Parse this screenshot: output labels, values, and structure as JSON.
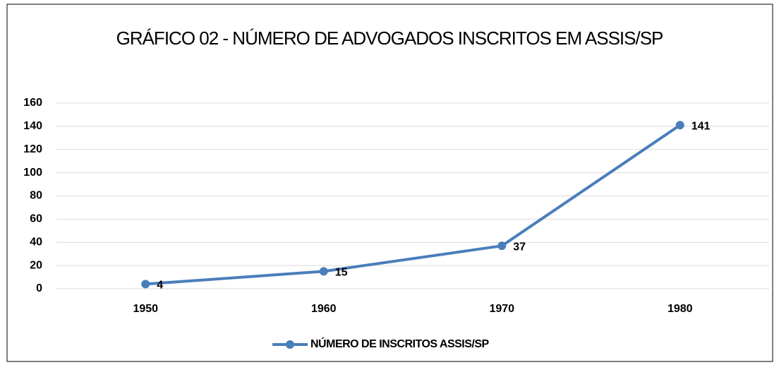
{
  "chart_data": {
    "type": "line",
    "title": "GRÁFICO 02 - NÚMERO DE ADVOGADOS INSCRITOS EM ASSIS/SP",
    "categories": [
      "1950",
      "1960",
      "1970",
      "1980"
    ],
    "series": [
      {
        "name": "NÚMERO DE INSCRITOS ASSIS/SP",
        "color": "#4a7ebb",
        "values": [
          4,
          15,
          37,
          141
        ]
      }
    ],
    "ylim": [
      0,
      160
    ],
    "yticks": [
      0,
      20,
      40,
      60,
      80,
      100,
      120,
      140,
      160
    ],
    "grid": true,
    "legend": "bottom"
  }
}
